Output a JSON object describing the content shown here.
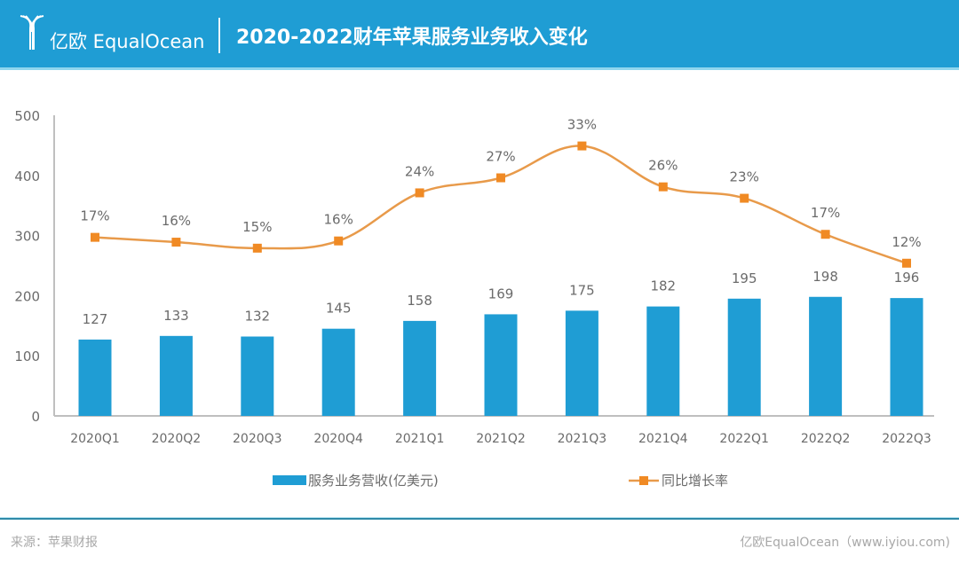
{
  "header": {
    "logo_text": "亿欧 EqualOcean",
    "title": "2020-2022财年苹果服务业务收入变化"
  },
  "colors": {
    "header_bg": "#1f9dd4",
    "bar": "#1f9dd4",
    "line": "#f08a24",
    "line_stroke": "#e89a4a",
    "axis": "#bfbfbf",
    "label": "#6b6b6b"
  },
  "chart_data": {
    "type": "bar+line",
    "title": "2020-2022财年苹果服务业务收入变化",
    "categories": [
      "2020Q1",
      "2020Q2",
      "2020Q3",
      "2020Q4",
      "2021Q1",
      "2021Q2",
      "2021Q3",
      "2021Q4",
      "2022Q1",
      "2022Q2",
      "2022Q3"
    ],
    "series": [
      {
        "name": "服务业务营收(亿美元)",
        "type": "bar",
        "values": [
          127,
          133,
          132,
          145,
          158,
          169,
          175,
          182,
          195,
          198,
          196
        ],
        "labels": [
          "127",
          "133",
          "132",
          "145",
          "158",
          "169",
          "175",
          "182",
          "195",
          "198",
          "196"
        ]
      },
      {
        "name": "同比增长率",
        "type": "line",
        "values": [
          17,
          16,
          15,
          16,
          24,
          27,
          33,
          26,
          23,
          17,
          12
        ],
        "labels": [
          "17%",
          "16%",
          "15%",
          "16%",
          "24%",
          "27%",
          "33%",
          "26%",
          "23%",
          "17%",
          "12%"
        ],
        "plotted_on_left_axis": [
          297,
          289,
          279,
          291,
          371,
          396,
          449,
          381,
          362,
          302,
          254
        ]
      }
    ],
    "y_axis": {
      "min": 0,
      "max": 500,
      "ticks": [
        "0",
        "100",
        "200",
        "300",
        "400",
        "500"
      ]
    },
    "legend": {
      "position": "bottom",
      "items": [
        "服务业务营收(亿美元)",
        "同比增长率"
      ]
    },
    "grid": false
  },
  "footer": {
    "source": "来源：苹果财报",
    "credit": "亿欧EqualOcean（www.iyiou.com)"
  }
}
